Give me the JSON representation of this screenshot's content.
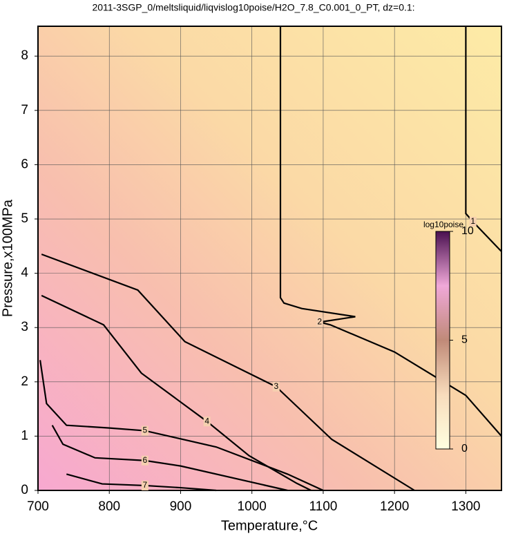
{
  "chart_data": {
    "type": "contour",
    "title": "2011-3SGP_0/meltsliquid/liqvislog10poise/H2O_7.8_C0.001_0_PT, dz=0.1:",
    "xlabel": "Temperature,°C",
    "ylabel": "Pressure,x100MPa",
    "xlim": [
      700,
      1350
    ],
    "ylim": [
      0,
      8.55
    ],
    "xticks": [
      700,
      800,
      900,
      1000,
      1100,
      1200,
      1300
    ],
    "yticks": [
      0,
      1,
      2,
      3,
      4,
      5,
      6,
      7,
      8
    ],
    "grid": true,
    "contours": [
      {
        "level": 1,
        "x": [
          1300,
          1300,
          1310,
          1350
        ],
        "y": [
          8.55,
          5.1,
          4.95,
          4.4
        ]
      },
      {
        "level": 2,
        "x": [
          1040,
          1040,
          1045,
          1070,
          1145,
          1095,
          1110,
          1200,
          1300,
          1350
        ],
        "y": [
          8.55,
          3.55,
          3.45,
          3.35,
          3.2,
          3.1,
          3.05,
          2.55,
          1.75,
          1.0
        ]
      },
      {
        "level": 3,
        "x": [
          705,
          840,
          906,
          1034,
          1112,
          1228
        ],
        "y": [
          4.35,
          3.69,
          2.74,
          1.91,
          0.94,
          0
        ]
      },
      {
        "level": 4,
        "x": [
          705,
          792,
          845,
          937,
          996,
          1063,
          1083
        ],
        "y": [
          3.59,
          3.05,
          2.16,
          1.27,
          0.64,
          0.13,
          0
        ]
      },
      {
        "level": 5,
        "x": [
          703,
          712,
          740,
          800,
          850,
          950,
          1050,
          1100
        ],
        "y": [
          2.4,
          1.6,
          1.2,
          1.15,
          1.1,
          0.8,
          0.3,
          0
        ]
      },
      {
        "level": 6,
        "x": [
          720,
          735,
          780,
          850,
          900,
          1000,
          1050
        ],
        "y": [
          1.2,
          0.85,
          0.6,
          0.55,
          0.45,
          0.15,
          0
        ]
      },
      {
        "level": 7,
        "x": [
          740,
          790,
          850,
          900,
          950
        ],
        "y": [
          0.3,
          0.12,
          0.09,
          0.05,
          0
        ]
      }
    ],
    "colorbar": {
      "label": "log10poise",
      "lim": [
        0,
        10
      ],
      "ticks": [
        0,
        5,
        10
      ]
    }
  }
}
